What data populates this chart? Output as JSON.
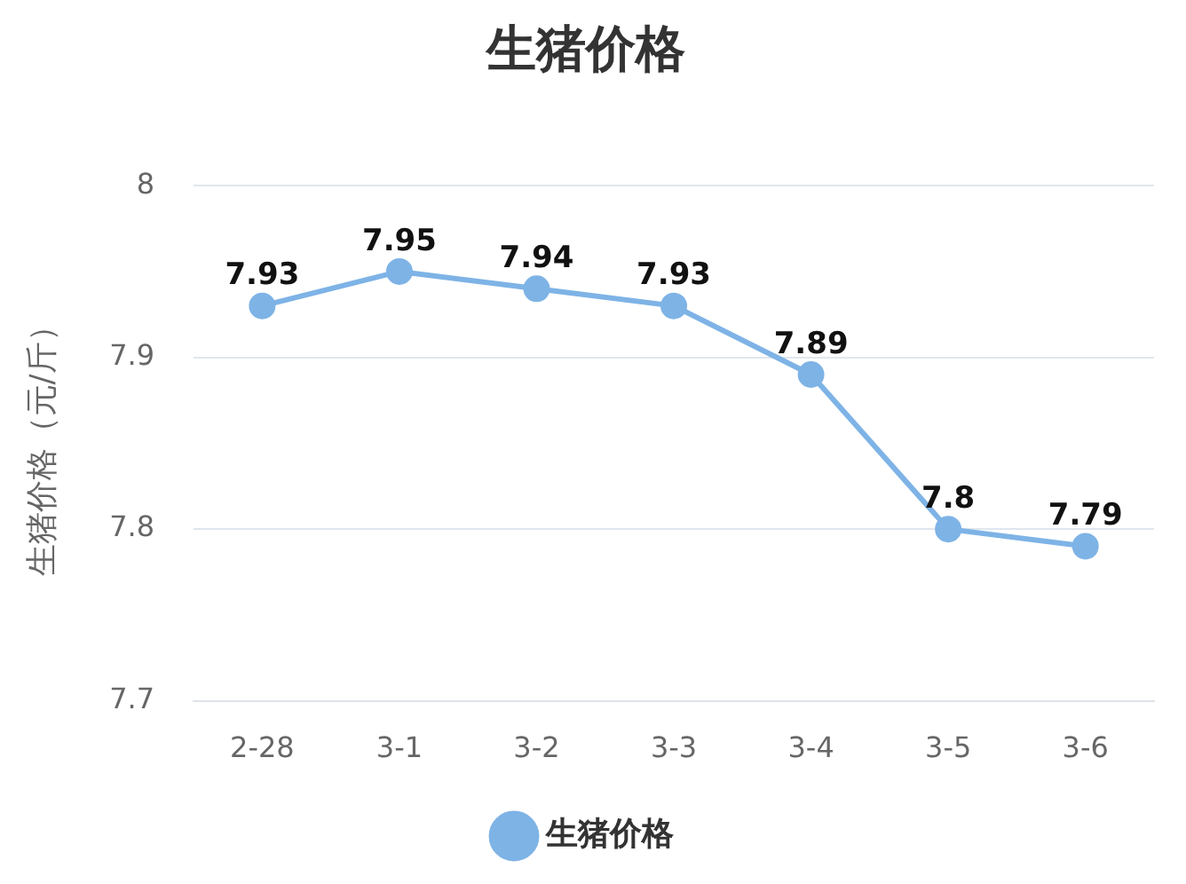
{
  "chart_data": {
    "type": "line",
    "title": "生猪价格",
    "ylabel": "生猪价格（元/斤）",
    "categories": [
      "2-28",
      "3-1",
      "3-2",
      "3-3",
      "3-4",
      "3-5",
      "3-6"
    ],
    "series": [
      {
        "name": "生猪价格",
        "color": "#7eb3e6",
        "values": [
          7.93,
          7.95,
          7.94,
          7.93,
          7.89,
          7.8,
          7.79
        ]
      }
    ],
    "ylim": [
      7.7,
      8
    ],
    "yticks": [
      7.7,
      7.8,
      7.9,
      8
    ],
    "grid": "y",
    "legend": "bottom",
    "marker": "circle",
    "line_style": "solid",
    "data_labels": true
  }
}
